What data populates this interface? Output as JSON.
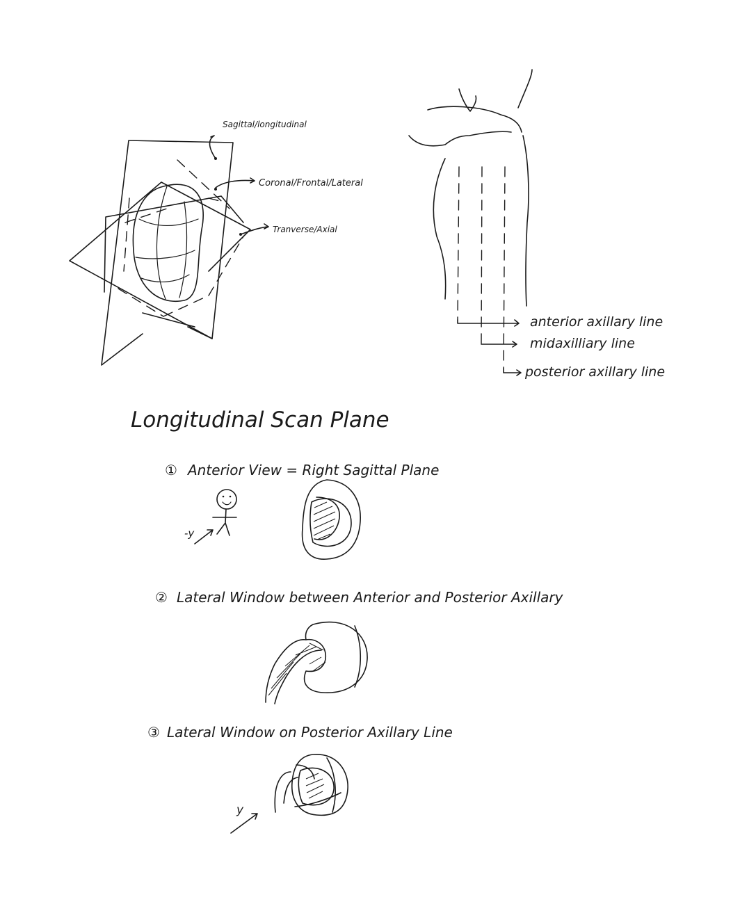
{
  "planes_diagram": {
    "sagittal_label": "Sagittal/longitudinal",
    "coronal_label": "Coronal/Frontal/Lateral",
    "transverse_label": "Tranverse/Axial"
  },
  "axillary_diagram": {
    "anterior_label": "anterior axillary line",
    "mid_label": "midaxilliary line",
    "posterior_label": "posterior axillary line"
  },
  "section": {
    "title": "Longitudinal Scan Plane"
  },
  "views": [
    {
      "number": "①",
      "caption": "Anterior View = Right Sagittal Plane",
      "axis_label": "-y"
    },
    {
      "number": "②",
      "caption": "Lateral Window between Anterior and Posterior Axillary",
      "axis_label": ""
    },
    {
      "number": "③",
      "caption": "Lateral Window on Posterior Axillary Line",
      "axis_label": "y"
    }
  ],
  "colors": {
    "ink": "#1a1a1a",
    "paper": "#ffffff"
  }
}
